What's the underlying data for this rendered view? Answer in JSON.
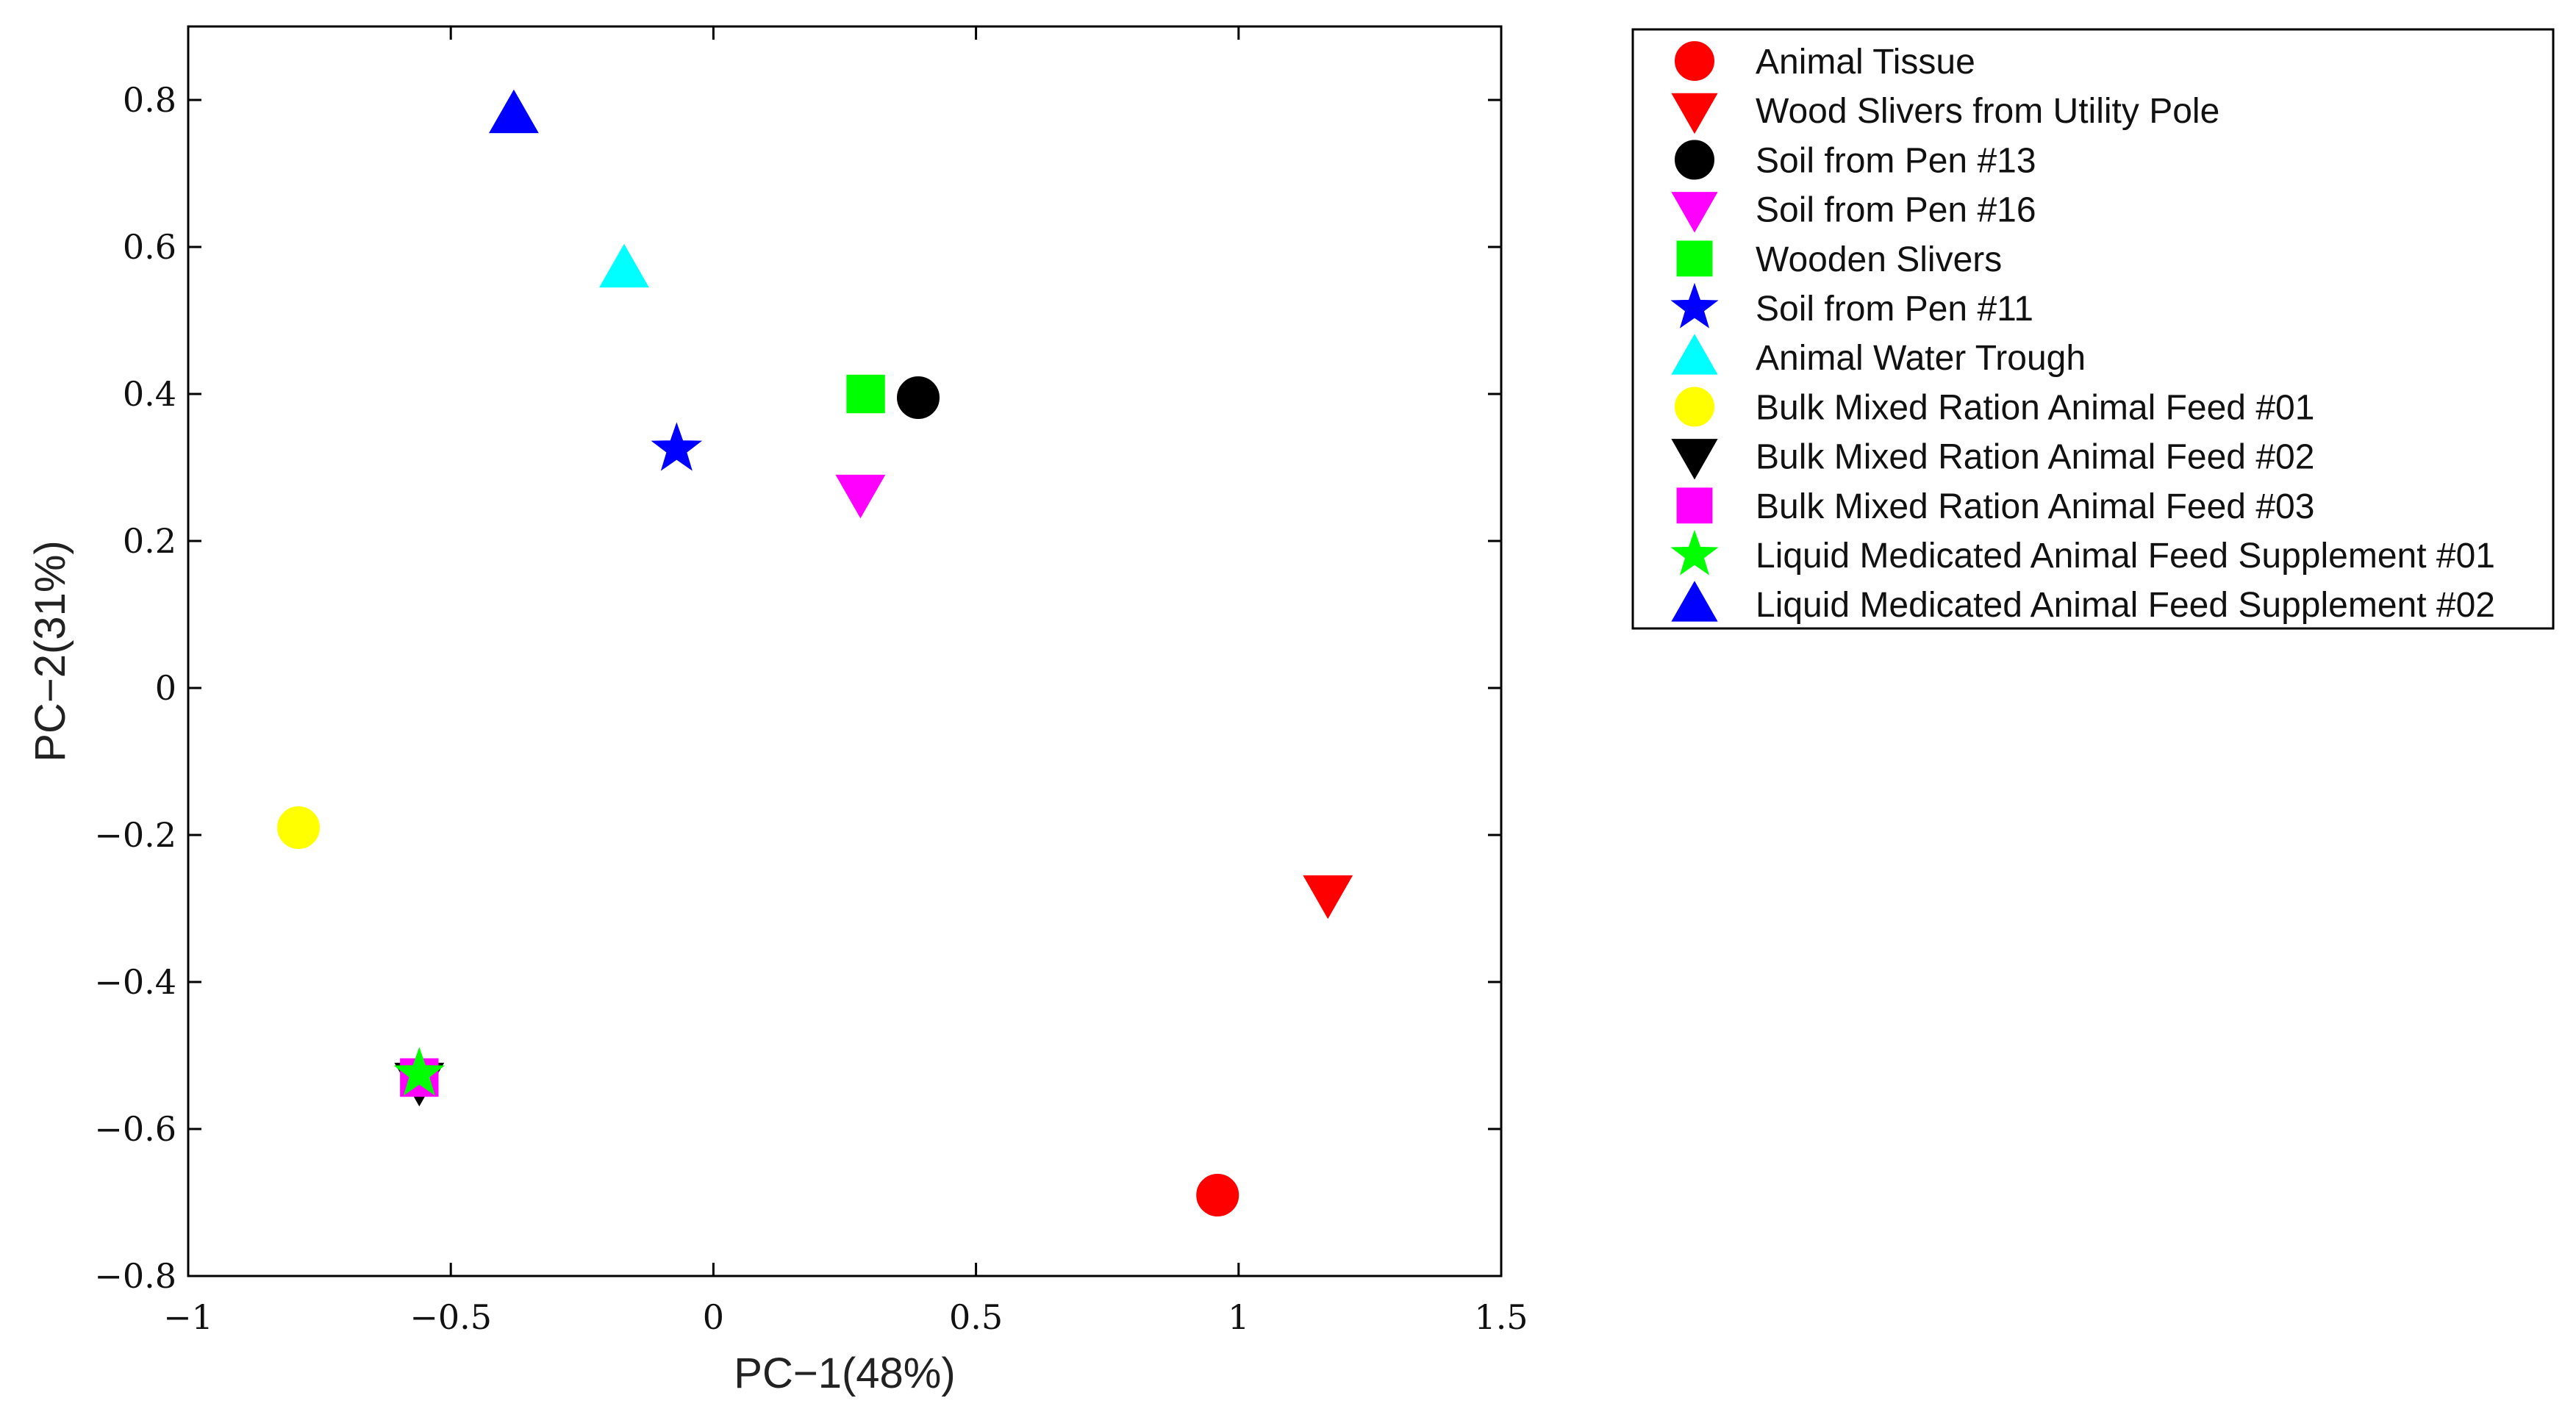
{
  "chart_data": {
    "type": "scatter",
    "xlabel": "PC−1(48%)",
    "ylabel": "PC−2(31%)",
    "xlim": [
      -1,
      1.5
    ],
    "ylim": [
      -0.8,
      0.9
    ],
    "xticks": [
      -1,
      -0.5,
      0,
      0.5,
      1,
      1.5
    ],
    "xtick_labels": [
      "−1",
      "−0.5",
      "0",
      "0.5",
      "1",
      "1.5"
    ],
    "yticks": [
      -0.8,
      -0.6,
      -0.4,
      -0.2,
      0,
      0.2,
      0.4,
      0.6,
      0.8
    ],
    "ytick_labels": [
      "−0.8",
      "−0.6",
      "−0.4",
      "−0.2",
      "0",
      "0.2",
      "0.4",
      "0.6",
      "0.8"
    ],
    "grid": false,
    "legend_position": "outside-top-right",
    "series": [
      {
        "name": "Animal Tissue",
        "marker": "circle",
        "color": "#ff0000",
        "x": 0.96,
        "y": -0.69
      },
      {
        "name": " Wood Slivers from Utility Pole",
        "marker": "triangle-down",
        "color": "#ff0000",
        "x": 1.17,
        "y": -0.28
      },
      {
        "name": "Soil from Pen #13",
        "marker": "circle",
        "color": "#000000",
        "x": 0.39,
        "y": 0.395
      },
      {
        "name": "Soil from Pen #16",
        "marker": "triangle-down",
        "color": "#ff00ff",
        "x": 0.28,
        "y": 0.265
      },
      {
        "name": "Wooden Slivers",
        "marker": "square",
        "color": "#00ff00",
        "x": 0.29,
        "y": 0.4
      },
      {
        "name": "Soil from Pen #11",
        "marker": "star",
        "color": "#0000ff",
        "x": -0.07,
        "y": 0.325
      },
      {
        "name": "Animal Water Trough",
        "marker": "triangle-up",
        "color": "#00ffff",
        "x": -0.17,
        "y": 0.57
      },
      {
        "name": "Bulk Mixed Ration Animal Feed #01",
        "marker": "circle",
        "color": "#ffff00",
        "x": -0.79,
        "y": -0.19
      },
      {
        "name": "Bulk Mixed Ration Animal Feed #02",
        "marker": "triangle-down",
        "color": "#000000",
        "x": -0.56,
        "y": -0.535
      },
      {
        "name": "Bulk Mixed Ration Animal Feed #03",
        "marker": "square",
        "color": "#ff00ff",
        "x": -0.56,
        "y": -0.53
      },
      {
        "name": "Liquid Medicated Animal Feed Supplement #01",
        "marker": "star",
        "color": "#00ff00",
        "x": -0.56,
        "y": -0.525
      },
      {
        "name": "Liquid Medicated Animal Feed Supplement #02",
        "marker": "triangle-up",
        "color": "#0000ff",
        "x": -0.38,
        "y": 0.78
      }
    ]
  }
}
